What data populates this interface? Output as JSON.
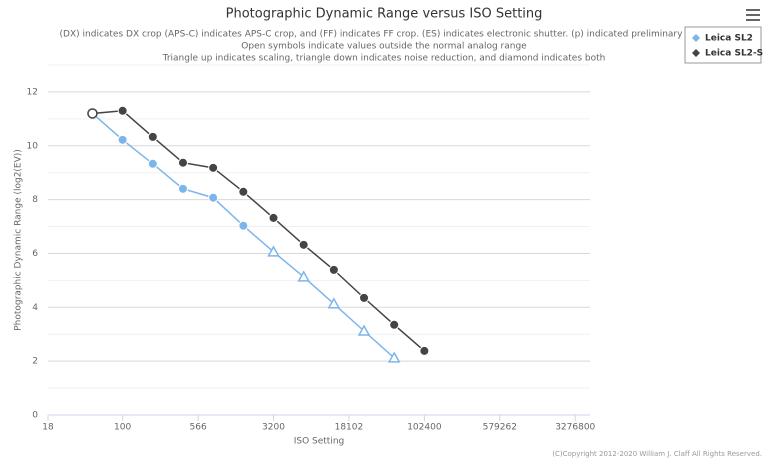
{
  "chart_data": {
    "type": "line",
    "title": "Photographic Dynamic Range versus ISO Setting",
    "subtitle": [
      "(DX) indicates DX crop (APS-C) indicates APS-C crop, and (FF) indicates FF crop. (ES) indicates electronic shutter. (p) indicated preliminary data.",
      "Open symbols indicate values outside the normal analog range",
      "Triangle up indicates scaling, triangle down indicates noise reduction, and diamond indicates both"
    ],
    "x_label": "ISO Setting",
    "y_label": "Photographic Dynamic Range (log2(EV))",
    "credit": "(C)Copyright 2012-2020 William J. Claff All Rights Reserved.",
    "x_log": true,
    "xlim": [
      18,
      4600000
    ],
    "xticks": [
      18,
      100,
      566,
      3200,
      18102,
      102400,
      579262,
      3276800
    ],
    "ylim": [
      0,
      13
    ],
    "yticks": [
      0,
      2,
      4,
      6,
      8,
      10,
      12
    ],
    "minor_ygrid": [
      1,
      3,
      5,
      7,
      9,
      11,
      13
    ],
    "legend": "top-right",
    "series": [
      {
        "name": "Leica SL2",
        "color": "#7cb5ec",
        "x": [
          50,
          100,
          200,
          400,
          800,
          1600,
          3200,
          6400,
          12800,
          25600,
          51200
        ],
        "values": [
          11.2,
          10.22,
          9.33,
          8.4,
          8.07,
          7.03,
          6.06,
          5.13,
          4.13,
          3.12,
          2.12
        ],
        "markers": [
          "open-circle",
          "circle",
          "circle",
          "circle",
          "circle",
          "circle",
          "open-triangle-up",
          "open-triangle-up",
          "open-triangle-up",
          "open-triangle-up",
          "open-triangle-up"
        ]
      },
      {
        "name": "Leica SL2-S",
        "color": "#434348",
        "x": [
          50,
          100,
          200,
          400,
          800,
          1600,
          3200,
          6400,
          12800,
          25600,
          51200,
          102400
        ],
        "values": [
          11.2,
          11.3,
          10.33,
          9.37,
          9.18,
          8.29,
          7.32,
          6.32,
          5.39,
          4.35,
          3.35,
          2.38
        ],
        "markers": [
          "open-circle",
          "circle",
          "circle",
          "circle",
          "circle",
          "circle",
          "circle",
          "circle",
          "circle",
          "circle",
          "circle",
          "circle"
        ]
      }
    ]
  }
}
